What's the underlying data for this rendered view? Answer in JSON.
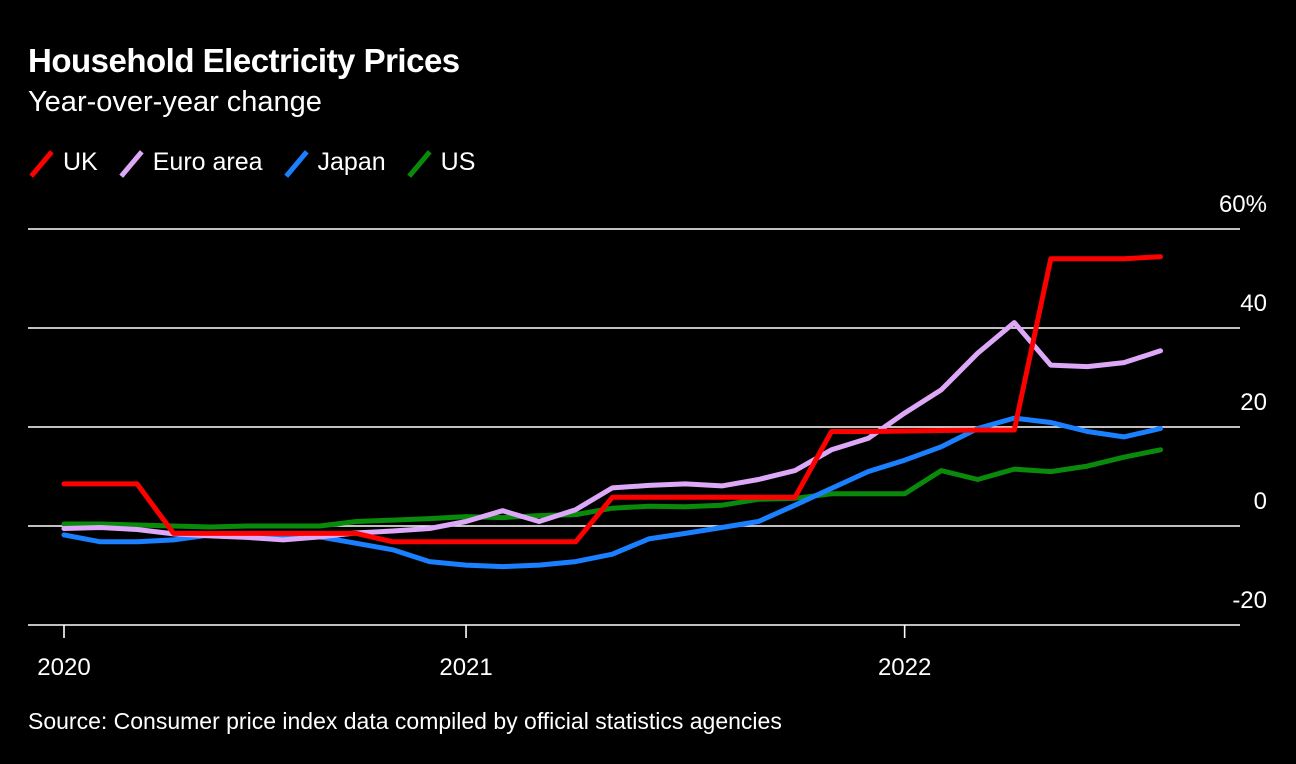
{
  "chart_data": {
    "type": "line",
    "title": "Household Electricity Prices",
    "subtitle": "Year-over-year change",
    "source": "Source: Consumer price index data compiled by official statistics agencies",
    "x": [
      "2020-02",
      "2020-03",
      "2020-04",
      "2020-05",
      "2020-06",
      "2020-07",
      "2020-08",
      "2020-09",
      "2020-10",
      "2020-11",
      "2020-12",
      "2021-01",
      "2021-02",
      "2021-03",
      "2021-04",
      "2021-05",
      "2021-06",
      "2021-07",
      "2021-08",
      "2021-09",
      "2021-10",
      "2021-11",
      "2021-12",
      "2022-01",
      "2022-02",
      "2022-03",
      "2022-04",
      "2022-05",
      "2022-06",
      "2022-07",
      "2022-08"
    ],
    "x_ticks": [
      {
        "label": "2020",
        "at": "2020-02"
      },
      {
        "label": "2021",
        "at": "2021-01"
      },
      {
        "label": "2022",
        "at": "2022-01"
      }
    ],
    "y_ticks": [
      {
        "value": 60,
        "label": "60%"
      },
      {
        "value": 40,
        "label": "40"
      },
      {
        "value": 20,
        "label": "20"
      },
      {
        "value": 0,
        "label": "0"
      },
      {
        "value": -20,
        "label": "-20"
      }
    ],
    "ylim": [
      -20,
      60
    ],
    "grid": true,
    "legend_position": "top-left",
    "series": [
      {
        "name": "UK",
        "color": "#ff0000",
        "values": [
          8.5,
          8.5,
          8.5,
          -1.5,
          -1.5,
          -1.5,
          -1.5,
          -1.5,
          -1.5,
          -3.2,
          -3.2,
          -3.2,
          -3.2,
          -3.2,
          -3.2,
          5.8,
          5.8,
          5.8,
          5.8,
          5.8,
          5.8,
          19.1,
          19.1,
          19.2,
          19.3,
          19.4,
          19.4,
          54,
          54,
          54,
          54.4
        ]
      },
      {
        "name": "Euro area",
        "color": "#dca8f7",
        "values": [
          -0.5,
          -0.3,
          -0.7,
          -1.6,
          -2.0,
          -2.3,
          -2.8,
          -2.2,
          -1.4,
          -1.0,
          -0.5,
          0.9,
          3.1,
          0.9,
          3.3,
          7.7,
          8.2,
          8.5,
          8.1,
          9.4,
          11.2,
          15.4,
          17.7,
          22.8,
          27.5,
          34.9,
          41.1,
          32.5,
          32.2,
          33,
          35.4
        ]
      },
      {
        "name": "Japan",
        "color": "#1a80ff",
        "values": [
          -1.8,
          -3.2,
          -3.2,
          -2.8,
          -1.8,
          -1.6,
          -1.8,
          -2.2,
          -3.5,
          -4.8,
          -7.2,
          -7.9,
          -8.2,
          -7.9,
          -7.2,
          -5.7,
          -2.6,
          -1.5,
          -0.3,
          0.9,
          4.2,
          7.6,
          11,
          13.3,
          16,
          19.7,
          21.8,
          20.9,
          19.1,
          18,
          19.7
        ]
      },
      {
        "name": "US",
        "color": "#0a8a0a",
        "values": [
          0.4,
          0.4,
          0.2,
          0,
          -0.2,
          0,
          0,
          0,
          0.9,
          1.2,
          1.5,
          1.9,
          1.7,
          2.1,
          2.3,
          3.6,
          4.0,
          3.9,
          4.2,
          5.4,
          5.6,
          6.5,
          6.5,
          6.5,
          11.2,
          9.4,
          11.5,
          11,
          12.1,
          13.9,
          15.4
        ]
      }
    ]
  }
}
